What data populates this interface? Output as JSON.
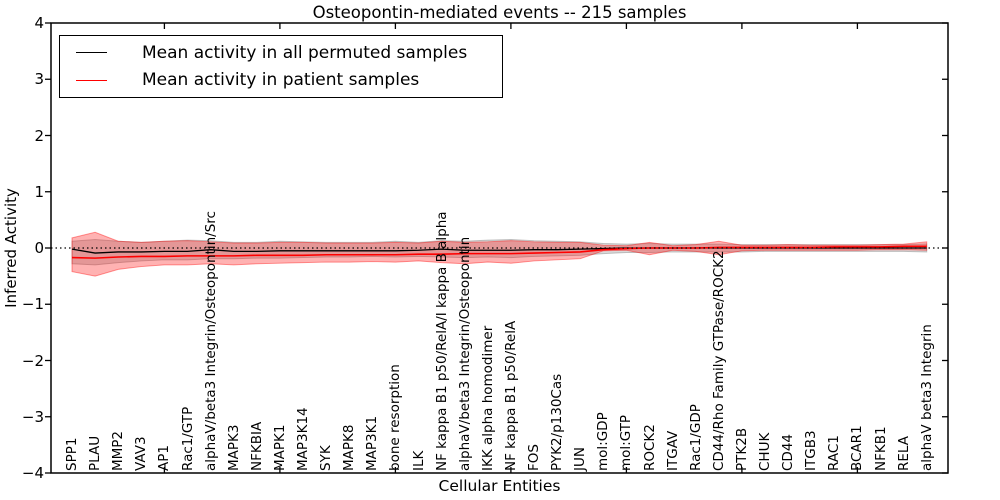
{
  "title": "Osteopontin-mediated events -- 215 samples",
  "axes": {
    "ylabel": "Inferred Activity",
    "xlabel": "Cellular Entities",
    "ytick_labels": [
      "−4",
      "−3",
      "−2",
      "−1",
      "0",
      "1",
      "2",
      "3",
      "4"
    ]
  },
  "legend": {
    "items": [
      {
        "name": "permuted",
        "label": "Mean activity in all permuted samples",
        "color": "#000000"
      },
      {
        "name": "patient",
        "label": "Mean activity in patient samples",
        "color": "#ff0000"
      }
    ]
  },
  "chart_data": {
    "type": "line",
    "title": "Osteopontin-mediated events -- 215 samples",
    "xlabel": "Cellular Entities",
    "ylabel": "Inferred Activity",
    "ylim": [
      -4,
      4
    ],
    "yticks": [
      -4,
      -3,
      -2,
      -1,
      0,
      1,
      2,
      3,
      4
    ],
    "xtick_indices": [
      4,
      9,
      14,
      19,
      24,
      29,
      34
    ],
    "grid": false,
    "legend_position": "upper left",
    "reference_line": {
      "y": 0,
      "style": "dotted",
      "color": "#000000"
    },
    "categories": [
      "SPP1",
      "PLAU",
      "MMP2",
      "VAV3",
      "AP1",
      "Rac1/GTP",
      "alphaV/beta3 Integrin/Osteopontin/Src",
      "MAPK3",
      "NFKBIA",
      "MAPK1",
      "MAP3K14",
      "SYK",
      "MAPK8",
      "MAP3K1",
      "bone resorption",
      "ILK",
      "NF kappa B1 p50/RelA/I kappa B alpha",
      "alphaV/beta3 Integrin/Osteopontin",
      "IKK alpha homodimer",
      "NF kappa B1 p50/RelA",
      "FOS",
      "PYK2/p130Cas",
      "JUN",
      "mol:GDP",
      "mol:GTP",
      "ROCK2",
      "ITGAV",
      "Rac1/GDP",
      "CD44/Rho Family GTPase/ROCK2",
      "PTK2B",
      "CHUK",
      "CD44",
      "ITGB3",
      "RAC1",
      "BCAR1",
      "NFKB1",
      "RELA",
      "alphaV beta3 Integrin"
    ],
    "series": [
      {
        "name": "Mean activity in all permuted samples",
        "color": "#000000",
        "width": 1.3,
        "values": [
          -0.02,
          -0.09,
          -0.07,
          -0.07,
          -0.06,
          -0.06,
          -0.03,
          -0.06,
          -0.06,
          -0.05,
          -0.05,
          -0.05,
          -0.05,
          -0.05,
          -0.05,
          -0.04,
          -0.02,
          -0.04,
          -0.04,
          -0.04,
          -0.03,
          -0.03,
          -0.02,
          -0.01,
          0,
          0,
          0,
          0,
          0,
          0,
          0,
          0,
          0,
          0,
          0,
          0,
          0,
          0
        ]
      },
      {
        "name": "Mean activity in patient samples",
        "color": "#ff0000",
        "width": 1.6,
        "values": [
          -0.17,
          -0.18,
          -0.16,
          -0.15,
          -0.15,
          -0.14,
          -0.14,
          -0.14,
          -0.13,
          -0.13,
          -0.13,
          -0.12,
          -0.12,
          -0.12,
          -0.12,
          -0.11,
          -0.11,
          -0.1,
          -0.1,
          -0.1,
          -0.09,
          -0.08,
          -0.07,
          -0.03,
          -0.01,
          0,
          0,
          0,
          0.01,
          0.01,
          0.01,
          0.01,
          0.01,
          0.02,
          0.02,
          0.02,
          0.03,
          0.03
        ]
      }
    ],
    "bands": [
      {
        "name": "permuted-range",
        "fill": "rgba(128,128,128,0.30)",
        "edge": "rgba(128,128,128,0.45)",
        "hi": [
          0.12,
          0.15,
          0.12,
          0.1,
          0.12,
          0.14,
          0.13,
          0.1,
          0.1,
          0.12,
          0.11,
          0.1,
          0.1,
          0.1,
          0.12,
          0.1,
          0.13,
          0.12,
          0.14,
          0.15,
          0.13,
          0.12,
          0.11,
          0.08,
          0.07,
          0.08,
          0.07,
          0.07,
          0.07,
          0.06,
          0.06,
          0.06,
          0.06,
          0.06,
          0.06,
          0.06,
          0.06,
          0.07
        ],
        "lo": [
          -0.28,
          -0.3,
          -0.26,
          -0.23,
          -0.21,
          -0.21,
          -0.19,
          -0.19,
          -0.18,
          -0.18,
          -0.17,
          -0.16,
          -0.16,
          -0.15,
          -0.16,
          -0.15,
          -0.16,
          -0.17,
          -0.16,
          -0.17,
          -0.15,
          -0.14,
          -0.13,
          -0.1,
          -0.08,
          -0.08,
          -0.07,
          -0.07,
          -0.07,
          -0.07,
          -0.06,
          -0.06,
          -0.06,
          -0.06,
          -0.06,
          -0.06,
          -0.06,
          -0.07
        ]
      },
      {
        "name": "patient-range",
        "fill": "rgba(255,0,0,0.30)",
        "edge": "rgba(255,0,0,0.40)",
        "hi": [
          0.18,
          0.28,
          0.12,
          0.1,
          0.12,
          0.13,
          0.11,
          0.09,
          0.09,
          0.1,
          0.1,
          0.09,
          0.09,
          0.09,
          0.1,
          0.09,
          0.12,
          0.1,
          0.11,
          0.13,
          0.11,
          0.1,
          0.1,
          0.05,
          0.04,
          0.1,
          0.04,
          0.06,
          0.12,
          0.05,
          0.05,
          0.06,
          0.05,
          0.05,
          0.05,
          0.06,
          0.07,
          0.11
        ],
        "lo": [
          -0.42,
          -0.5,
          -0.38,
          -0.33,
          -0.3,
          -0.3,
          -0.28,
          -0.3,
          -0.28,
          -0.27,
          -0.26,
          -0.25,
          -0.25,
          -0.24,
          -0.25,
          -0.23,
          -0.26,
          -0.28,
          -0.25,
          -0.27,
          -0.23,
          -0.21,
          -0.19,
          -0.05,
          -0.04,
          -0.12,
          -0.04,
          -0.06,
          -0.12,
          -0.05,
          -0.04,
          -0.04,
          -0.04,
          -0.04,
          -0.04,
          -0.03,
          -0.03,
          -0.04
        ]
      }
    ]
  }
}
